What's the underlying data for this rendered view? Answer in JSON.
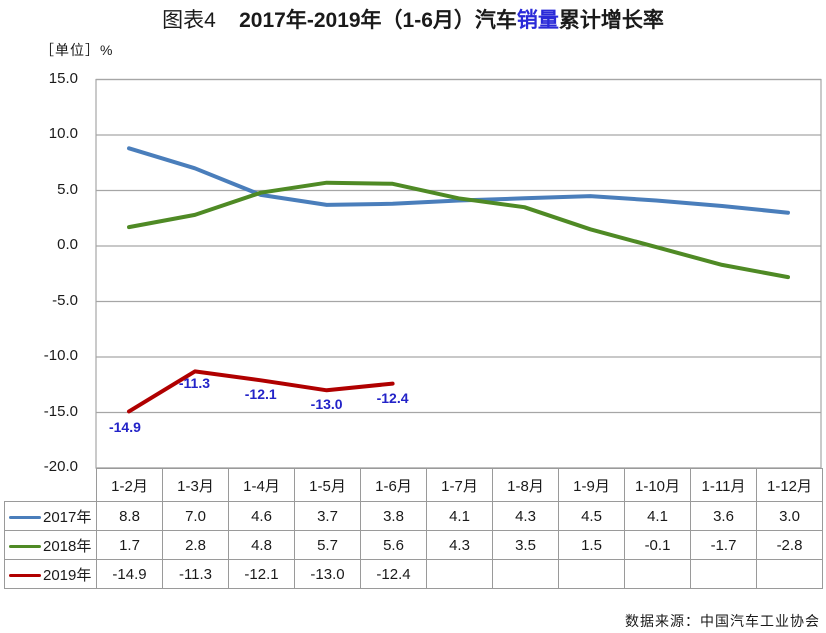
{
  "title": {
    "figure_label": "图表4",
    "part1": "2017年-2019年（1-6月）汽车",
    "highlight": "销量",
    "part2": "累计增长率"
  },
  "unit_label": "［单位］%",
  "source": "数据来源：中国汽车工业协会",
  "colors": {
    "2017": "#4a7ebb",
    "2018": "#4f8a25",
    "2019": "#b00000",
    "data_label": "#2323c8",
    "grid": "#a6a6a6"
  },
  "table": {
    "headers": [
      "1-2月",
      "1-3月",
      "1-4月",
      "1-5月",
      "1-6月",
      "1-7月",
      "1-8月",
      "1-9月",
      "1-10月",
      "1-11月",
      "1-12月"
    ],
    "rows": [
      {
        "label": "2017年",
        "values": [
          "8.8",
          "7.0",
          "4.6",
          "3.7",
          "3.8",
          "4.1",
          "4.3",
          "4.5",
          "4.1",
          "3.6",
          "3.0"
        ]
      },
      {
        "label": "2018年",
        "values": [
          "1.7",
          "2.8",
          "4.8",
          "5.7",
          "5.6",
          "4.3",
          "3.5",
          "1.5",
          "-0.1",
          "-1.7",
          "-2.8"
        ]
      },
      {
        "label": "2019年",
        "values": [
          "-14.9",
          "-11.3",
          "-12.1",
          "-13.0",
          "-12.4",
          "",
          "",
          "",
          "",
          "",
          ""
        ]
      }
    ]
  },
  "chart_data": {
    "type": "line",
    "title": "图表4 2017年-2019年（1-6月）汽车销量累计增长率",
    "xlabel": "",
    "ylabel": "［单位］%",
    "ylim": [
      -20,
      15
    ],
    "yticks": [
      "15.0",
      "10.0",
      "5.0",
      "0.0",
      "-5.0",
      "-10.0",
      "-15.0",
      "-20.0"
    ],
    "grid": true,
    "legend_position": "data-table-left",
    "categories": [
      "1-2月",
      "1-3月",
      "1-4月",
      "1-5月",
      "1-6月",
      "1-7月",
      "1-8月",
      "1-9月",
      "1-10月",
      "1-11月",
      "1-12月"
    ],
    "series": [
      {
        "name": "2017年",
        "color": "#4a7ebb",
        "values": [
          8.8,
          7.0,
          4.6,
          3.7,
          3.8,
          4.1,
          4.3,
          4.5,
          4.1,
          3.6,
          3.0
        ]
      },
      {
        "name": "2018年",
        "color": "#4f8a25",
        "values": [
          1.7,
          2.8,
          4.8,
          5.7,
          5.6,
          4.3,
          3.5,
          1.5,
          -0.1,
          -1.7,
          -2.8
        ]
      },
      {
        "name": "2019年",
        "color": "#b00000",
        "values": [
          -14.9,
          -11.3,
          -12.1,
          -13.0,
          -12.4
        ],
        "data_labels": [
          "-14.9",
          "-11.3",
          "-12.1",
          "-13.0",
          "-12.4"
        ]
      }
    ],
    "source": "数据来源：中国汽车工业协会"
  }
}
